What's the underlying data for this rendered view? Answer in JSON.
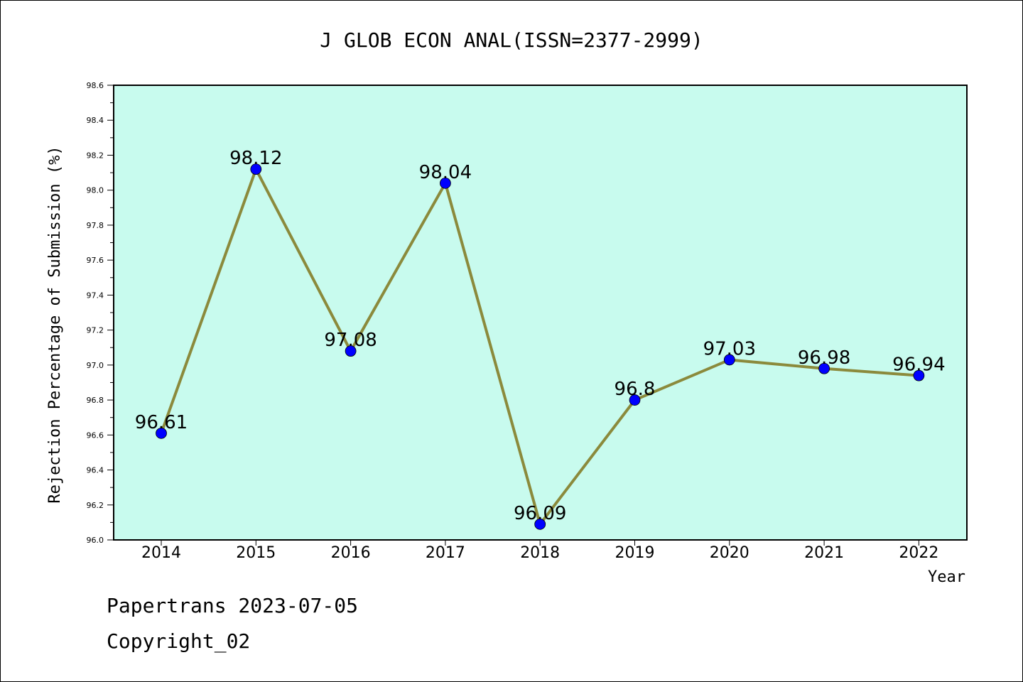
{
  "chart_data": {
    "type": "line",
    "title": "J GLOB ECON ANAL(ISSN=2377-2999)",
    "xlabel": "Year",
    "ylabel": "Rejection Percentage of Submission (%)",
    "categories": [
      "2014",
      "2015",
      "2016",
      "2017",
      "2018",
      "2019",
      "2020",
      "2021",
      "2022"
    ],
    "values": [
      96.61,
      98.12,
      97.08,
      98.04,
      96.09,
      96.8,
      97.03,
      96.98,
      96.94
    ],
    "data_labels": [
      "96.61",
      "98.12",
      "97.08",
      "98.04",
      "96.09",
      "96.8",
      "97.03",
      "96.98",
      "96.94"
    ],
    "ylim": [
      96.0,
      98.6
    ],
    "yticks": [
      "96.0",
      "96.2",
      "96.4",
      "96.6",
      "96.8",
      "97.0",
      "97.2",
      "97.4",
      "97.6",
      "97.8",
      "98.0",
      "98.2",
      "98.4",
      "98.6"
    ],
    "grid": false,
    "colors": {
      "plot_background": "#c8fbee",
      "line": "#8b8a3c",
      "marker": "#0000ff"
    }
  },
  "footer": {
    "line1": "Papertrans 2023-07-05",
    "line2": "Copyright_02"
  }
}
